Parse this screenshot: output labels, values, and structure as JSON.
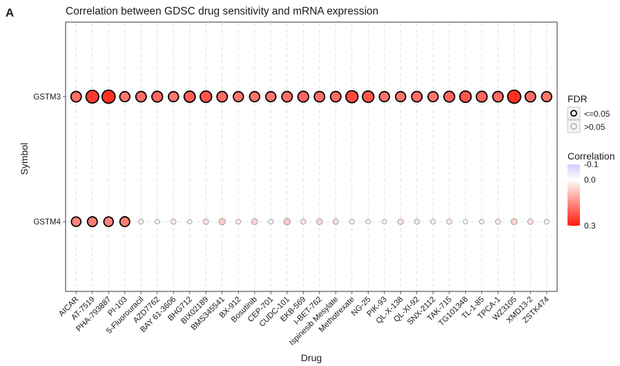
{
  "panel_label": "A",
  "chart_data": {
    "type": "scatter",
    "title": "Correlation between GDSC drug sensitivity and mRNA expression",
    "xlabel": "Drug",
    "ylabel": "Symbol",
    "categories": [
      "AICAR",
      "AT-7519",
      "PHA-793887",
      "PI-103",
      "5-Fluorouracil",
      "AZD7762",
      "BAY 61-3606",
      "BHG712",
      "BIX02189",
      "BMS345541",
      "BX-912",
      "Bosutinib",
      "CEP-701",
      "CUDC-101",
      "EKB-569",
      "I-BET-762",
      "Ispinesib Mesylate",
      "Methotrexate",
      "NG-25",
      "PIK-93",
      "QL-X-138",
      "QL-XI-92",
      "SNX-2112",
      "TAK-715",
      "TG101348",
      "TL-1-85",
      "TPCA-1",
      "WZ3105",
      "XMD13-2",
      "ZSTK474"
    ],
    "symbols": [
      "GSTM4",
      "GSTM3"
    ],
    "series": [
      {
        "name": "GSTM3",
        "correlation": [
          0.19,
          0.26,
          0.27,
          0.18,
          0.19,
          0.2,
          0.18,
          0.21,
          0.22,
          0.19,
          0.18,
          0.18,
          0.18,
          0.19,
          0.2,
          0.19,
          0.19,
          0.24,
          0.22,
          0.18,
          0.18,
          0.19,
          0.18,
          0.2,
          0.22,
          0.2,
          0.19,
          0.27,
          0.19,
          0.18
        ],
        "fdr_le_0_05": [
          true,
          true,
          true,
          true,
          true,
          true,
          true,
          true,
          true,
          true,
          true,
          true,
          true,
          true,
          true,
          true,
          true,
          true,
          true,
          true,
          true,
          true,
          true,
          true,
          true,
          true,
          true,
          true,
          true,
          true
        ]
      },
      {
        "name": "GSTM4",
        "correlation": [
          0.16,
          0.17,
          0.16,
          0.17,
          0.02,
          0.01,
          0.03,
          0.01,
          0.04,
          0.07,
          0.02,
          0.06,
          -0.02,
          0.07,
          0.03,
          0.05,
          0.04,
          0.02,
          0.01,
          0.01,
          0.04,
          0.03,
          0.02,
          0.03,
          0.01,
          0.01,
          0.03,
          0.06,
          0.04,
          0.02
        ],
        "fdr_le_0_05": [
          true,
          true,
          true,
          true,
          false,
          false,
          false,
          false,
          false,
          false,
          false,
          false,
          false,
          false,
          false,
          false,
          false,
          false,
          false,
          false,
          false,
          false,
          false,
          false,
          false,
          false,
          false,
          false,
          false,
          false
        ]
      }
    ],
    "legend_fdr": {
      "title": "FDR",
      "items": [
        {
          "label": "<=0.05",
          "significant": true
        },
        {
          "label": ">0.05",
          "significant": false
        }
      ]
    },
    "legend_color": {
      "title": "Correlation",
      "ticks": [
        "-0.1",
        "0.0",
        "0.3"
      ],
      "range": [
        -0.1,
        0.3
      ],
      "low_color": "#d9c8ff",
      "mid_color": "#ffffff",
      "high_color": "#ff1a0a"
    },
    "grid": true,
    "legend_position": "right"
  }
}
